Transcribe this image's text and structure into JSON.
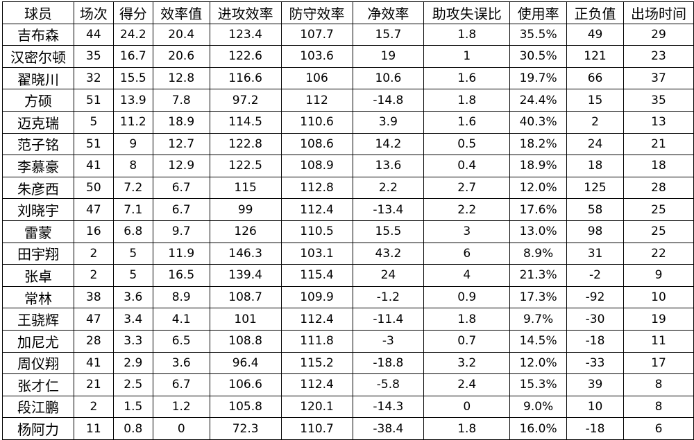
{
  "table": {
    "headers": [
      "球员",
      "场次",
      "得分",
      "效率值",
      "进攻效率",
      "防守效率",
      "净效率",
      "助攻失误比",
      "使用率",
      "正负值",
      "出场时间"
    ],
    "rows": [
      [
        "吉布森",
        "44",
        "24.2",
        "20.4",
        "123.4",
        "107.7",
        "15.7",
        "1.8",
        "35.5%",
        "49",
        "29"
      ],
      [
        "汉密尔顿",
        "35",
        "16.7",
        "20.6",
        "122.6",
        "103.6",
        "19",
        "1",
        "30.5%",
        "121",
        "23"
      ],
      [
        "翟晓川",
        "32",
        "15.5",
        "12.8",
        "116.6",
        "106",
        "10.6",
        "1.6",
        "19.7%",
        "66",
        "37"
      ],
      [
        "方硕",
        "51",
        "13.9",
        "7.8",
        "97.2",
        "112",
        "-14.8",
        "1.8",
        "24.4%",
        "15",
        "35"
      ],
      [
        "迈克瑞",
        "5",
        "11.2",
        "18.9",
        "114.5",
        "110.6",
        "3.9",
        "1.6",
        "40.3%",
        "2",
        "13"
      ],
      [
        "范子铭",
        "51",
        "9",
        "12.7",
        "122.8",
        "108.6",
        "14.2",
        "0.5",
        "18.2%",
        "24",
        "21"
      ],
      [
        "李慕豪",
        "41",
        "8",
        "12.9",
        "122.5",
        "108.9",
        "13.6",
        "0.4",
        "18.9%",
        "18",
        "18"
      ],
      [
        "朱彦西",
        "50",
        "7.2",
        "6.7",
        "115",
        "112.8",
        "2.2",
        "2.7",
        "12.0%",
        "125",
        "28"
      ],
      [
        "刘晓宇",
        "47",
        "7.1",
        "6.7",
        "99",
        "112.4",
        "-13.4",
        "2.2",
        "17.6%",
        "58",
        "25"
      ],
      [
        "雷蒙",
        "16",
        "6.8",
        "9.7",
        "126",
        "110.5",
        "15.5",
        "3",
        "13.0%",
        "98",
        "25"
      ],
      [
        "田宇翔",
        "2",
        "5",
        "11.9",
        "146.3",
        "103.1",
        "43.2",
        "6",
        "8.9%",
        "31",
        "22"
      ],
      [
        "张卓",
        "2",
        "5",
        "16.5",
        "139.4",
        "115.4",
        "24",
        "4",
        "21.3%",
        "-2",
        "9"
      ],
      [
        "常林",
        "38",
        "3.6",
        "8.9",
        "108.7",
        "109.9",
        "-1.2",
        "0.9",
        "17.3%",
        "-92",
        "10"
      ],
      [
        "王骁辉",
        "47",
        "3.4",
        "4.1",
        "101",
        "112.4",
        "-11.4",
        "1.8",
        "9.7%",
        "-30",
        "19"
      ],
      [
        "加尼尤",
        "28",
        "3.3",
        "6.5",
        "108.8",
        "111.8",
        "-3",
        "0.7",
        "14.5%",
        "-18",
        "11"
      ],
      [
        "周仪翔",
        "41",
        "2.9",
        "3.6",
        "96.4",
        "115.2",
        "-18.8",
        "3.2",
        "12.0%",
        "-33",
        "17"
      ],
      [
        "张才仁",
        "21",
        "2.5",
        "6.7",
        "106.6",
        "112.4",
        "-5.8",
        "2.4",
        "15.3%",
        "39",
        "8"
      ],
      [
        "段江鹏",
        "2",
        "1.5",
        "1.2",
        "105.8",
        "120.1",
        "-14.3",
        "0",
        "9.0%",
        "10",
        "8"
      ],
      [
        "杨阿力",
        "11",
        "0.8",
        "0",
        "72.3",
        "110.7",
        "-38.4",
        "1.8",
        "16.0%",
        "-18",
        "6"
      ]
    ]
  }
}
